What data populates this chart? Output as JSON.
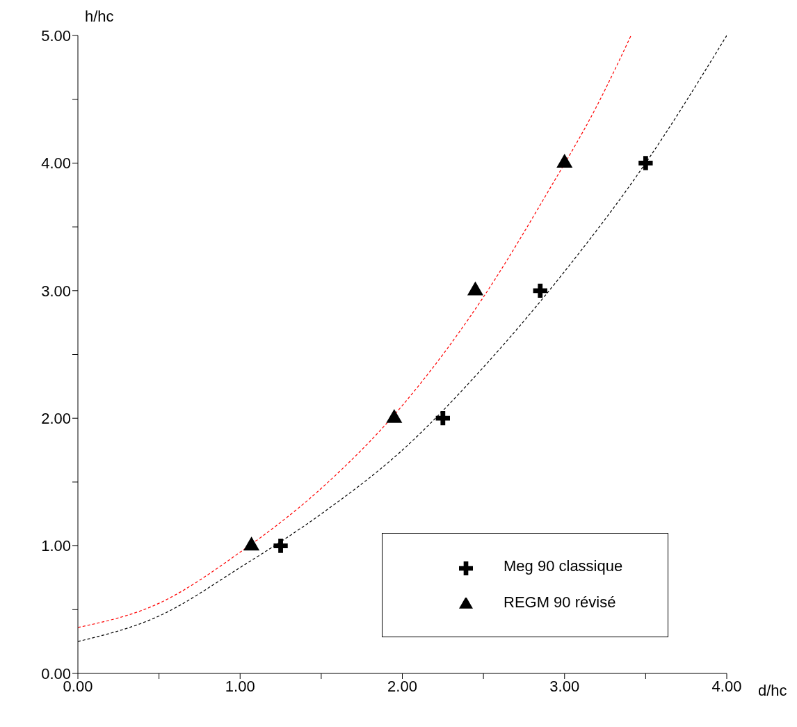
{
  "chart_data": {
    "type": "scatter",
    "xlabel": "d/hc",
    "ylabel": "h/hc",
    "xlim": [
      0,
      4
    ],
    "ylim": [
      0,
      5
    ],
    "xticks": [
      {
        "value": 0,
        "label": "0.00"
      },
      {
        "value": 0.5,
        "label": null
      },
      {
        "value": 1,
        "label": "1.00"
      },
      {
        "value": 1.5,
        "label": null
      },
      {
        "value": 2,
        "label": "2.00"
      },
      {
        "value": 2.5,
        "label": null
      },
      {
        "value": 3,
        "label": "3.00"
      },
      {
        "value": 3.5,
        "label": null
      },
      {
        "value": 4,
        "label": "4.00"
      }
    ],
    "yticks": [
      {
        "value": 0,
        "label": "0.00"
      },
      {
        "value": 0.5,
        "label": null
      },
      {
        "value": 1,
        "label": "1.00"
      },
      {
        "value": 1.5,
        "label": null
      },
      {
        "value": 2,
        "label": "2.00"
      },
      {
        "value": 2.5,
        "label": null
      },
      {
        "value": 3,
        "label": "3.00"
      },
      {
        "value": 3.5,
        "label": null
      },
      {
        "value": 4,
        "label": "4.00"
      },
      {
        "value": 4.5,
        "label": null
      },
      {
        "value": 5,
        "label": "5.00"
      }
    ],
    "legend": "bottom right",
    "series": [
      {
        "name": "Meg 90 classique",
        "marker": "cross",
        "color": "#000000",
        "x": [
          1.25,
          2.25,
          2.85,
          3.5
        ],
        "values": [
          1,
          2,
          3,
          4
        ]
      },
      {
        "type": "line",
        "marker": "none",
        "line_style": "dashed",
        "color": "#000000",
        "x": [
          0,
          0.5,
          1,
          1.5,
          2,
          2.5,
          3,
          3.5,
          4
        ],
        "values": [
          0.25,
          0.45,
          0.83,
          1.25,
          1.75,
          2.4,
          3.15,
          4.0,
          5.0
        ]
      },
      {
        "name": "REGM 90 révisé",
        "marker": "triangle",
        "color": "#000000",
        "x": [
          1.07,
          1.95,
          2.45,
          3.0
        ],
        "values": [
          1,
          2,
          3,
          4
        ]
      },
      {
        "type": "line",
        "marker": "none",
        "line_style": "dashed",
        "color": "#ff0000",
        "x": [
          0,
          0.5,
          1,
          1.5,
          2,
          2.5,
          2.9,
          3.2,
          3.41
        ],
        "values": [
          0.36,
          0.55,
          0.95,
          1.45,
          2.1,
          2.95,
          3.78,
          4.45,
          5.0
        ]
      }
    ]
  }
}
